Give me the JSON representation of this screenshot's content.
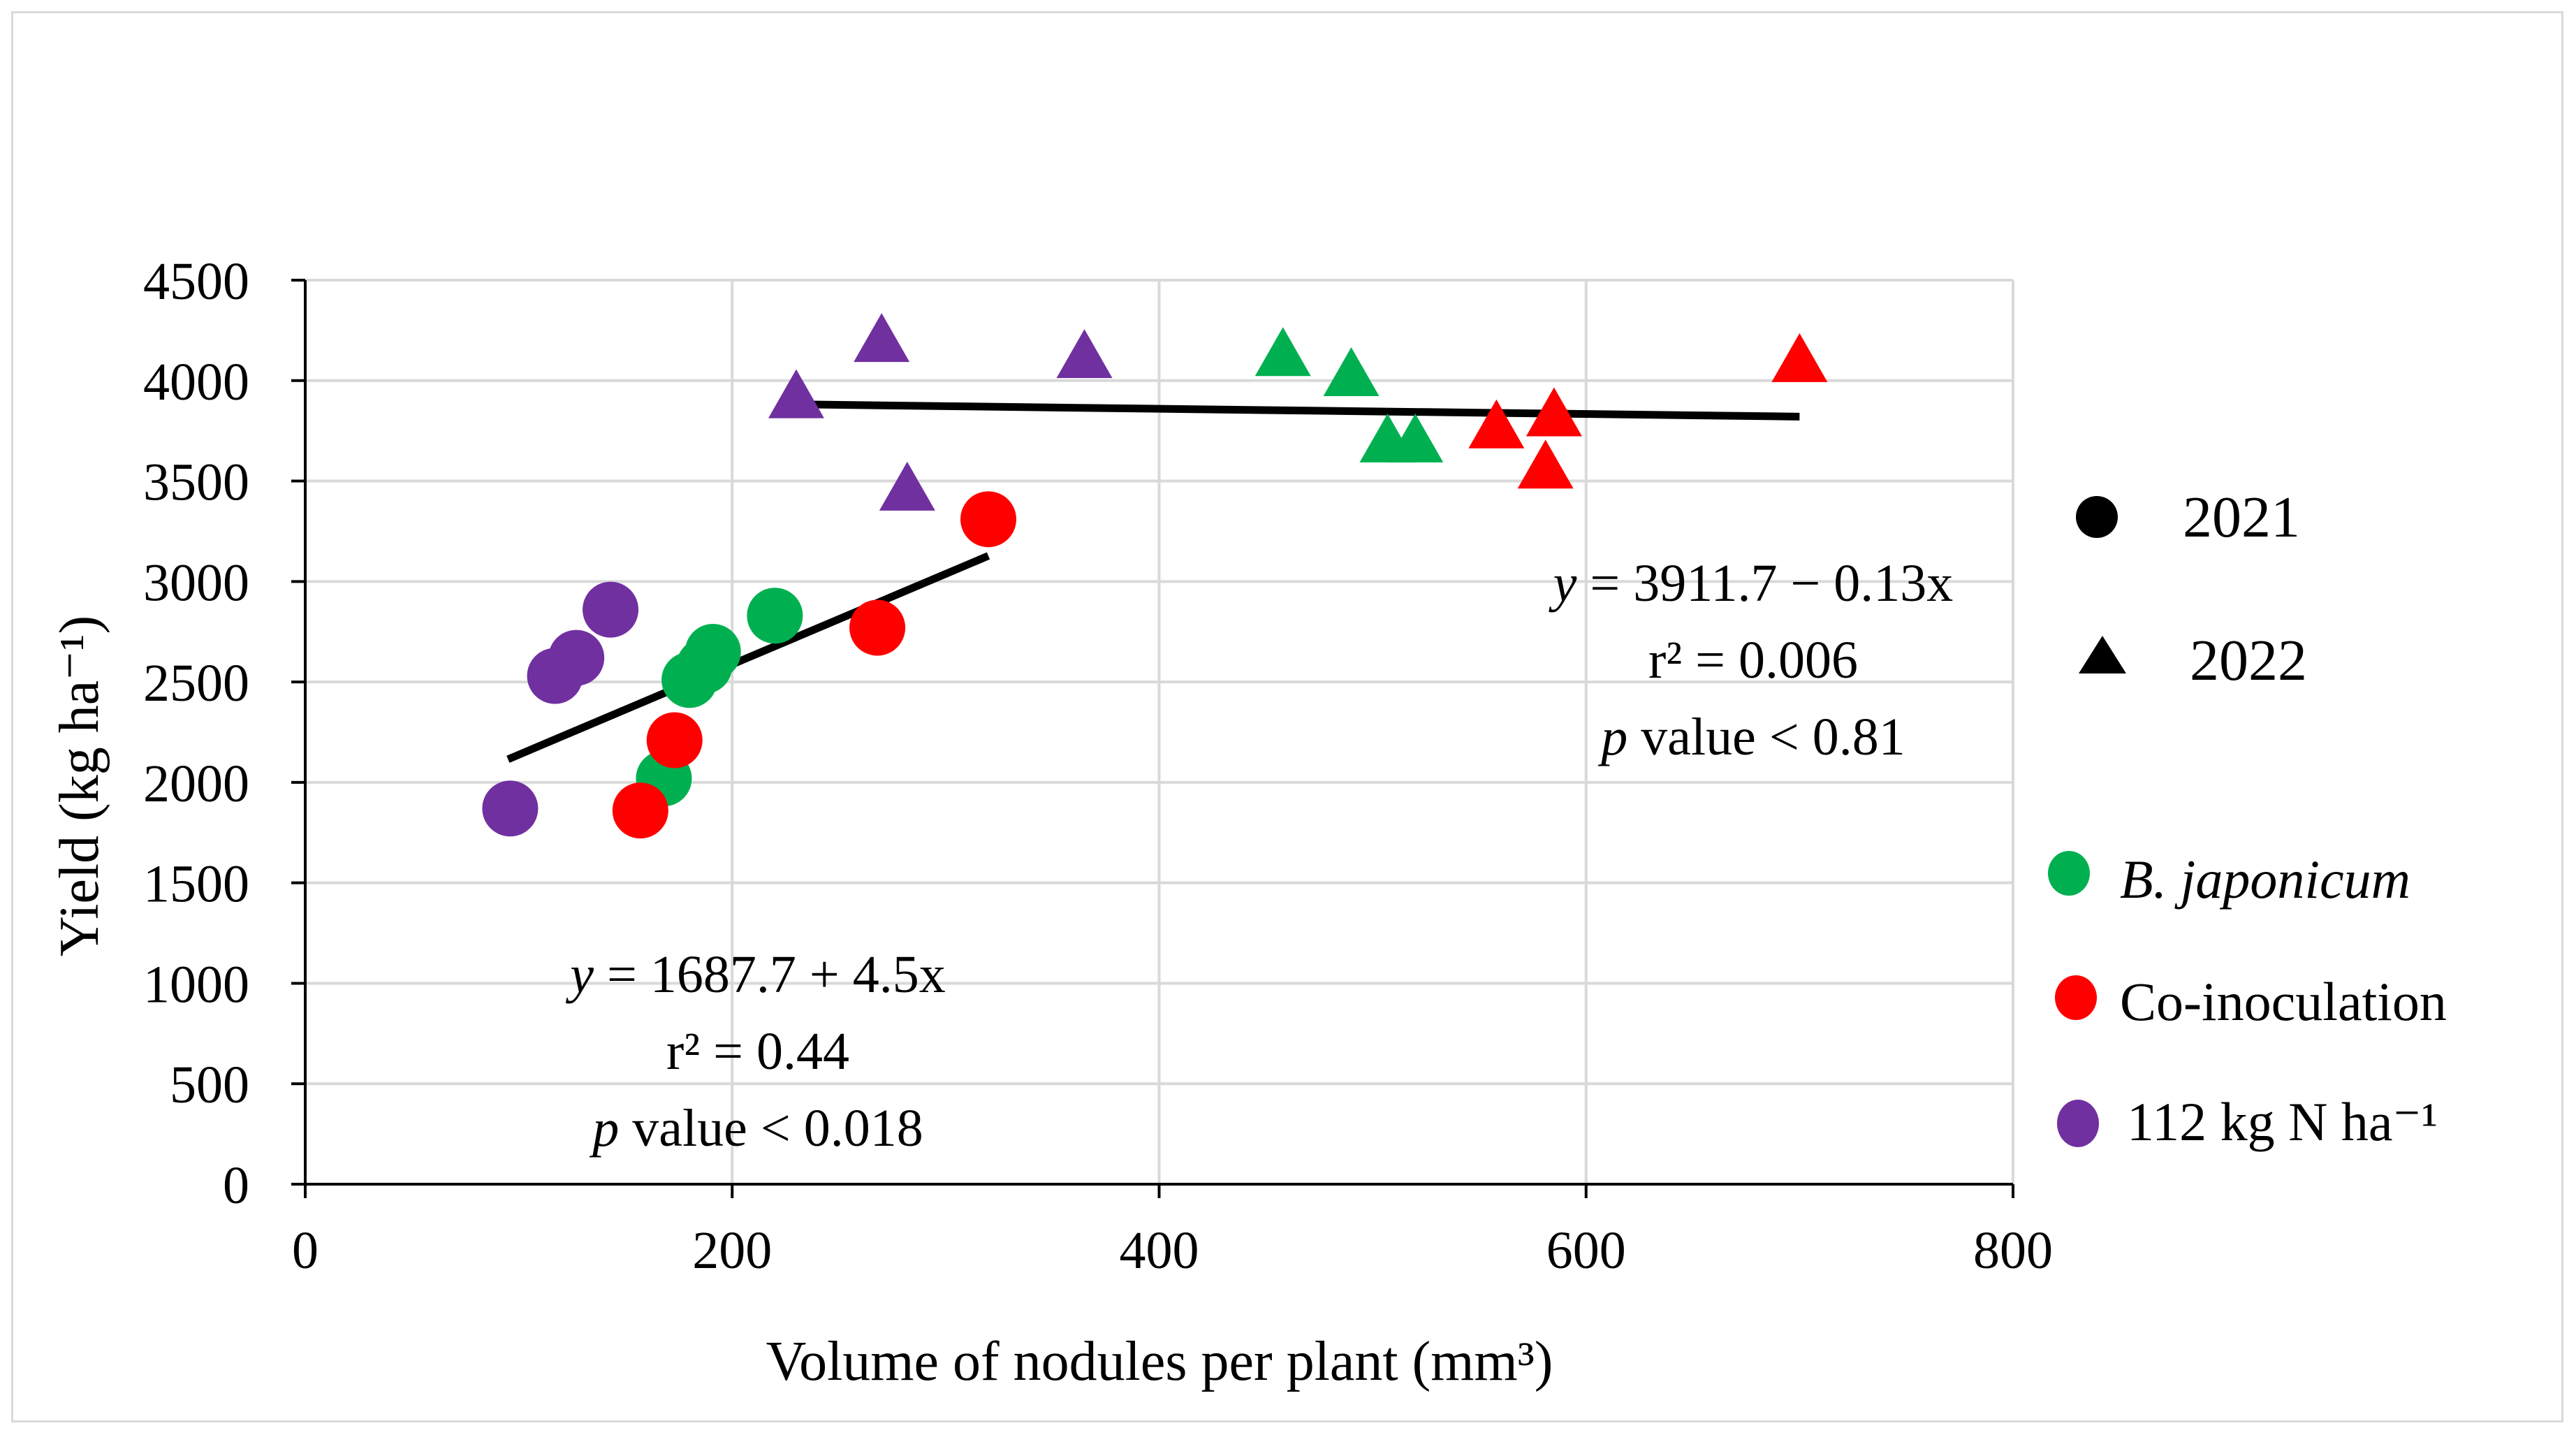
{
  "chart_data": {
    "type": "scatter",
    "title": "",
    "xlabel": "Volume of nodules per plant (mm³)",
    "ylabel": "Yield (kg ha⁻¹)",
    "xlim": [
      0,
      800
    ],
    "ylim": [
      0,
      4500
    ],
    "x_ticks": [
      0,
      200,
      400,
      600,
      800
    ],
    "y_ticks": [
      0,
      500,
      1000,
      1500,
      2000,
      2500,
      3000,
      3500,
      4000,
      4500
    ],
    "grid": true,
    "legend_position": "right",
    "colors": {
      "b_japonicum": "#00b050",
      "co_inoculation": "#ff0000",
      "n112": "#7030a0",
      "trend": "#000000",
      "grid": "#d9d9d9"
    },
    "legend": {
      "years": [
        {
          "label": "2021",
          "marker": "circle"
        },
        {
          "label": "2022",
          "marker": "triangle"
        }
      ],
      "treatments": [
        {
          "label": "B. japonicum",
          "key": "b_japonicum",
          "italic": true
        },
        {
          "label": "Co-inoculation",
          "key": "co_inoculation",
          "italic": false
        },
        {
          "label": "112 kg N ha⁻¹",
          "key": "n112",
          "italic": false
        }
      ]
    },
    "series": [
      {
        "name": "B. japonicum",
        "key": "b_japonicum",
        "points_2021": [
          [
            168,
            2020
          ],
          [
            180,
            2510
          ],
          [
            187,
            2580
          ],
          [
            191,
            2650
          ],
          [
            220,
            2830
          ]
        ],
        "points_2022": [
          [
            458,
            4120
          ],
          [
            490,
            4020
          ],
          [
            507,
            3690
          ],
          [
            520,
            3690
          ]
        ]
      },
      {
        "name": "Co-inoculation",
        "key": "co_inoculation",
        "points_2021": [
          [
            157,
            1860
          ],
          [
            173,
            2210
          ],
          [
            268,
            2770
          ],
          [
            320,
            3310
          ]
        ],
        "points_2022": [
          [
            558,
            3760
          ],
          [
            581,
            3560
          ],
          [
            585,
            3820
          ],
          [
            700,
            4090
          ]
        ]
      },
      {
        "name": "112 kg N ha⁻¹",
        "key": "n112",
        "points_2021": [
          [
            96,
            1870
          ],
          [
            117,
            2530
          ],
          [
            127,
            2620
          ],
          [
            143,
            2860
          ]
        ],
        "points_2022": [
          [
            230,
            3910
          ],
          [
            270,
            4190
          ],
          [
            282,
            3450
          ],
          [
            365,
            4110
          ]
        ]
      }
    ],
    "trendlines": [
      {
        "name": "2021",
        "x_range": [
          95,
          320
        ],
        "intercept": 1687.7,
        "slope": 4.5
      },
      {
        "name": "2022",
        "x_range": [
          230,
          700
        ],
        "intercept": 3911.7,
        "slope": -0.13
      }
    ],
    "annotations": {
      "fit_2021": {
        "eq_y": "y",
        "eq_rest": " = 1687.7 + 4.5x",
        "r2": "r² = 0.44",
        "p_var": "p",
        "p_rest": " value < 0.018"
      },
      "fit_2022": {
        "eq_y": "y",
        "eq_rest": " = 3911.7 − 0.13x",
        "r2": "r² = 0.006",
        "p_var": "p",
        "p_rest": " value < 0.81"
      }
    }
  }
}
